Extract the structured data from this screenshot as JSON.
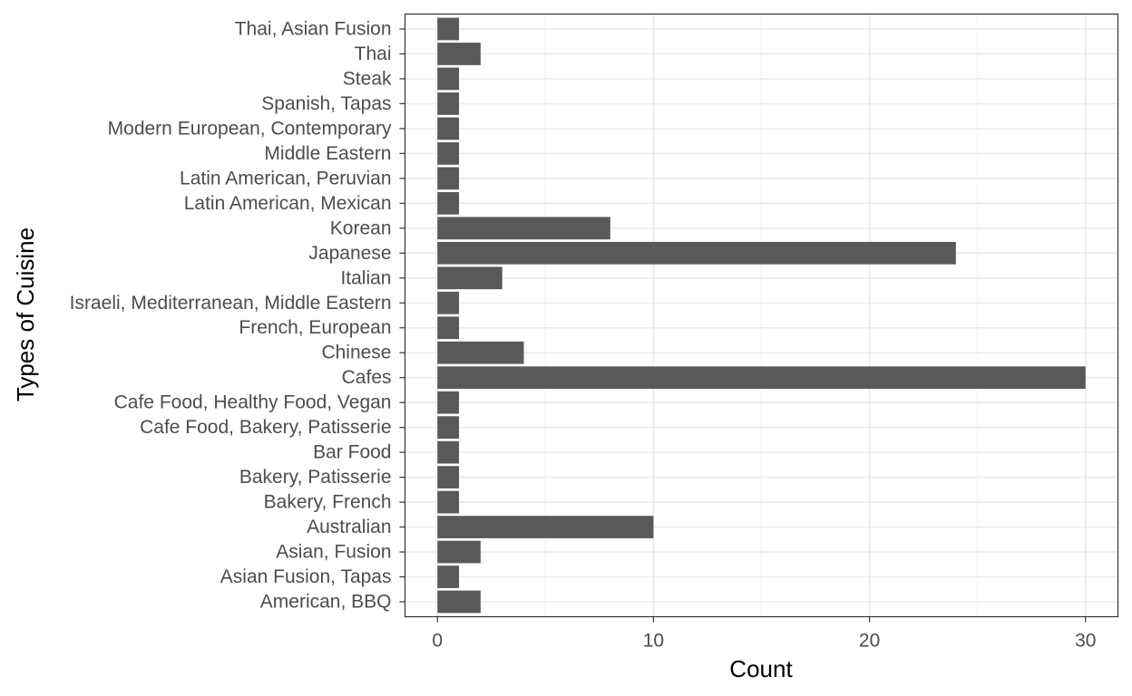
{
  "chart_data": {
    "type": "bar",
    "orientation": "horizontal",
    "xlabel": "Count",
    "ylabel": "Types of Cuisine",
    "xlim": [
      -1.5,
      31.5
    ],
    "x_ticks": [
      0,
      10,
      20,
      30
    ],
    "grid": true,
    "bar_color": "#595959",
    "categories": [
      "American, BBQ",
      "Asian Fusion, Tapas",
      "Asian, Fusion",
      "Australian",
      "Bakery, French",
      "Bakery, Patisserie",
      "Bar Food",
      "Cafe Food, Bakery, Patisserie",
      "Cafe Food, Healthy Food, Vegan",
      "Cafes",
      "Chinese",
      "French, European",
      "Israeli, Mediterranean, Middle Eastern",
      "Italian",
      "Japanese",
      "Korean",
      "Latin American, Mexican",
      "Latin American, Peruvian",
      "Middle Eastern",
      "Modern European, Contemporary",
      "Spanish, Tapas",
      "Steak",
      "Thai",
      "Thai, Asian Fusion"
    ],
    "values": [
      2,
      1,
      2,
      10,
      1,
      1,
      1,
      1,
      1,
      30,
      4,
      1,
      1,
      3,
      24,
      8,
      1,
      1,
      1,
      1,
      1,
      1,
      2,
      1
    ]
  }
}
